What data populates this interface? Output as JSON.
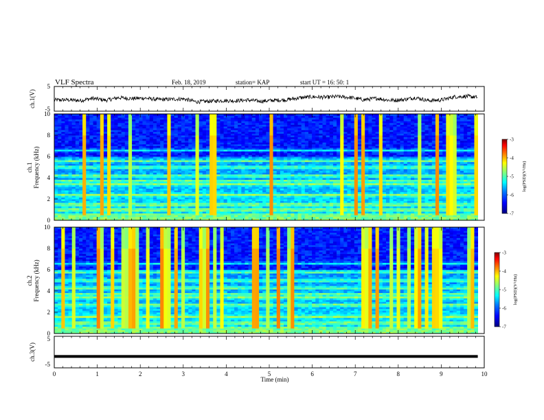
{
  "header": {
    "title": "VLF Spectra",
    "date": "Feb. 18, 2019",
    "station": "station= KAP",
    "start_ut": "start UT =  16: 50: 1"
  },
  "chart_data": [
    {
      "type": "line",
      "panel": "ch1-waveform",
      "ylabel": "ch.1(V)",
      "ylim": [
        -5,
        5
      ],
      "ytick_labels": [
        "5",
        "-5"
      ],
      "xlim": [
        0,
        9.85
      ],
      "series": [
        {
          "x": [
            0,
            0.3,
            0.6,
            0.9,
            1.2,
            1.5,
            1.8,
            2.1,
            2.4,
            2.7,
            3.0,
            3.3,
            3.6,
            3.9,
            4.2,
            4.5,
            4.8,
            5.1,
            5.4,
            5.7,
            6.0,
            6.3,
            6.6,
            6.9,
            7.2,
            7.5,
            7.8,
            8.1,
            8.4,
            8.7,
            9.0,
            9.3,
            9.6,
            9.85
          ],
          "y": [
            -0.5,
            -0.4,
            -0.7,
            0.2,
            -0.6,
            0.5,
            0.1,
            0.3,
            -0.3,
            -0.2,
            0.0,
            -1.2,
            -1.0,
            -0.7,
            -0.8,
            -0.5,
            -1.0,
            -0.6,
            -0.4,
            0.4,
            0.8,
            0.6,
            0.9,
            0.5,
            -0.4,
            0.2,
            -0.6,
            -0.4,
            0.5,
            -0.7,
            -0.5,
            0.8,
            1.0,
            0.6
          ]
        }
      ]
    },
    {
      "type": "heatmap",
      "panel": "ch1-spectrogram",
      "ylabel": "ch.1\nFrequency (kHz)",
      "ylim": [
        0,
        10
      ],
      "ytick_labels": [
        "0",
        "2",
        "4",
        "6",
        "8",
        "10"
      ],
      "xlim": [
        0,
        9.85
      ],
      "colorbar": {
        "label": "log(PSD)(V²/Hz)",
        "range": [
          -7,
          -3
        ],
        "tick_labels": [
          "-3",
          "-4",
          "-5",
          "-6",
          "-7"
        ]
      },
      "dominant_bands_khz": [
        0.5,
        1.0,
        1.5,
        2.4,
        3.4,
        3.7,
        4.2,
        5.0,
        5.6,
        6.6
      ],
      "notes": "broadband noise high below ~6 kHz; sparse vertical impulsive streaks up to 10 kHz"
    },
    {
      "type": "heatmap",
      "panel": "ch2-spectrogram",
      "ylabel": "ch.2\nFrequency (kHz)",
      "ylim": [
        0,
        10
      ],
      "ytick_labels": [
        "0",
        "2",
        "4",
        "6",
        "8",
        "10"
      ],
      "xlim": [
        0,
        9.85
      ],
      "colorbar": {
        "label": "log(PSD)(V²/Hz)",
        "range": [
          -7,
          -3
        ],
        "tick_labels": [
          "-3",
          "-4",
          "-5",
          "-6",
          "-7"
        ]
      },
      "dominant_bands_khz": [
        0.5,
        1.0,
        1.6,
        2.7,
        3.4,
        3.7,
        4.3,
        5.0,
        5.8,
        6.6
      ],
      "notes": "denser vertical impulsive streaks than ch.1"
    },
    {
      "type": "line",
      "panel": "ch3-waveform",
      "ylabel": "ch.3(V)",
      "ylim": [
        -5,
        5
      ],
      "ytick_labels": [
        "5",
        "-5"
      ],
      "xlabel": "Time (min)",
      "xlim": [
        0,
        10
      ],
      "xtick_labels": [
        "0",
        "1",
        "2",
        "3",
        "4",
        "5",
        "6",
        "7",
        "8",
        "9",
        "10"
      ],
      "series": [
        {
          "x": [
            0,
            9.85
          ],
          "y": [
            -1.6,
            -1.6
          ]
        }
      ]
    }
  ],
  "colors": {
    "colormap": [
      "#00007f",
      "#0000ff",
      "#0080ff",
      "#00ffff",
      "#80ff80",
      "#ffff00",
      "#ff8000",
      "#ff0000",
      "#7f0000"
    ],
    "waveform": "#000000",
    "axes": "#000000"
  }
}
